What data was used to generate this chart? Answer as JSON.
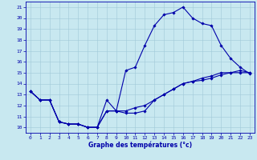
{
  "xlabel": "Graphe des températures (°c)",
  "bg_color": "#c8e8f0",
  "grid_color": "#a0c8d8",
  "line_color": "#0000aa",
  "spine_color": "#0000aa",
  "xlim": [
    -0.5,
    23.5
  ],
  "ylim": [
    9.5,
    21.5
  ],
  "yticks": [
    10,
    11,
    12,
    13,
    14,
    15,
    16,
    17,
    18,
    19,
    20,
    21
  ],
  "xticks": [
    0,
    1,
    2,
    3,
    4,
    5,
    6,
    7,
    8,
    9,
    10,
    11,
    12,
    13,
    14,
    15,
    16,
    17,
    18,
    19,
    20,
    21,
    22,
    23
  ],
  "line1_x": [
    0,
    1,
    2,
    3,
    4,
    5,
    6,
    7,
    8,
    9,
    10,
    11,
    12,
    13,
    14,
    15,
    16,
    17,
    18,
    19,
    20,
    21,
    22,
    23
  ],
  "line1_y": [
    13.3,
    12.5,
    12.5,
    10.5,
    10.3,
    10.3,
    10.0,
    10.0,
    11.5,
    11.5,
    11.3,
    11.3,
    11.5,
    12.5,
    13.0,
    13.5,
    14.0,
    14.2,
    14.3,
    14.5,
    14.8,
    15.0,
    15.0,
    15.0
  ],
  "line2_x": [
    0,
    1,
    2,
    3,
    4,
    5,
    6,
    7,
    8,
    9,
    10,
    11,
    12,
    13,
    14,
    15,
    16,
    17,
    18,
    19,
    20,
    21,
    22,
    23
  ],
  "line2_y": [
    13.3,
    12.5,
    12.5,
    10.5,
    10.3,
    10.3,
    10.0,
    10.0,
    12.5,
    11.5,
    15.2,
    15.5,
    17.5,
    19.3,
    20.3,
    20.5,
    21.0,
    20.0,
    19.5,
    19.3,
    17.5,
    16.3,
    15.5,
    14.9
  ],
  "line3_x": [
    0,
    1,
    2,
    3,
    4,
    5,
    6,
    7,
    8,
    9,
    10,
    11,
    12,
    13,
    14,
    15,
    16,
    17,
    18,
    19,
    20,
    21,
    22,
    23
  ],
  "line3_y": [
    13.3,
    12.5,
    12.5,
    10.5,
    10.3,
    10.3,
    10.0,
    10.0,
    11.5,
    11.5,
    11.5,
    11.8,
    12.0,
    12.5,
    13.0,
    13.5,
    14.0,
    14.2,
    14.5,
    14.7,
    15.0,
    15.0,
    15.2,
    15.0
  ],
  "marker": "D",
  "markersize": 1.8,
  "linewidth": 0.8,
  "tick_fontsize": 4.5,
  "xlabel_fontsize": 5.5
}
